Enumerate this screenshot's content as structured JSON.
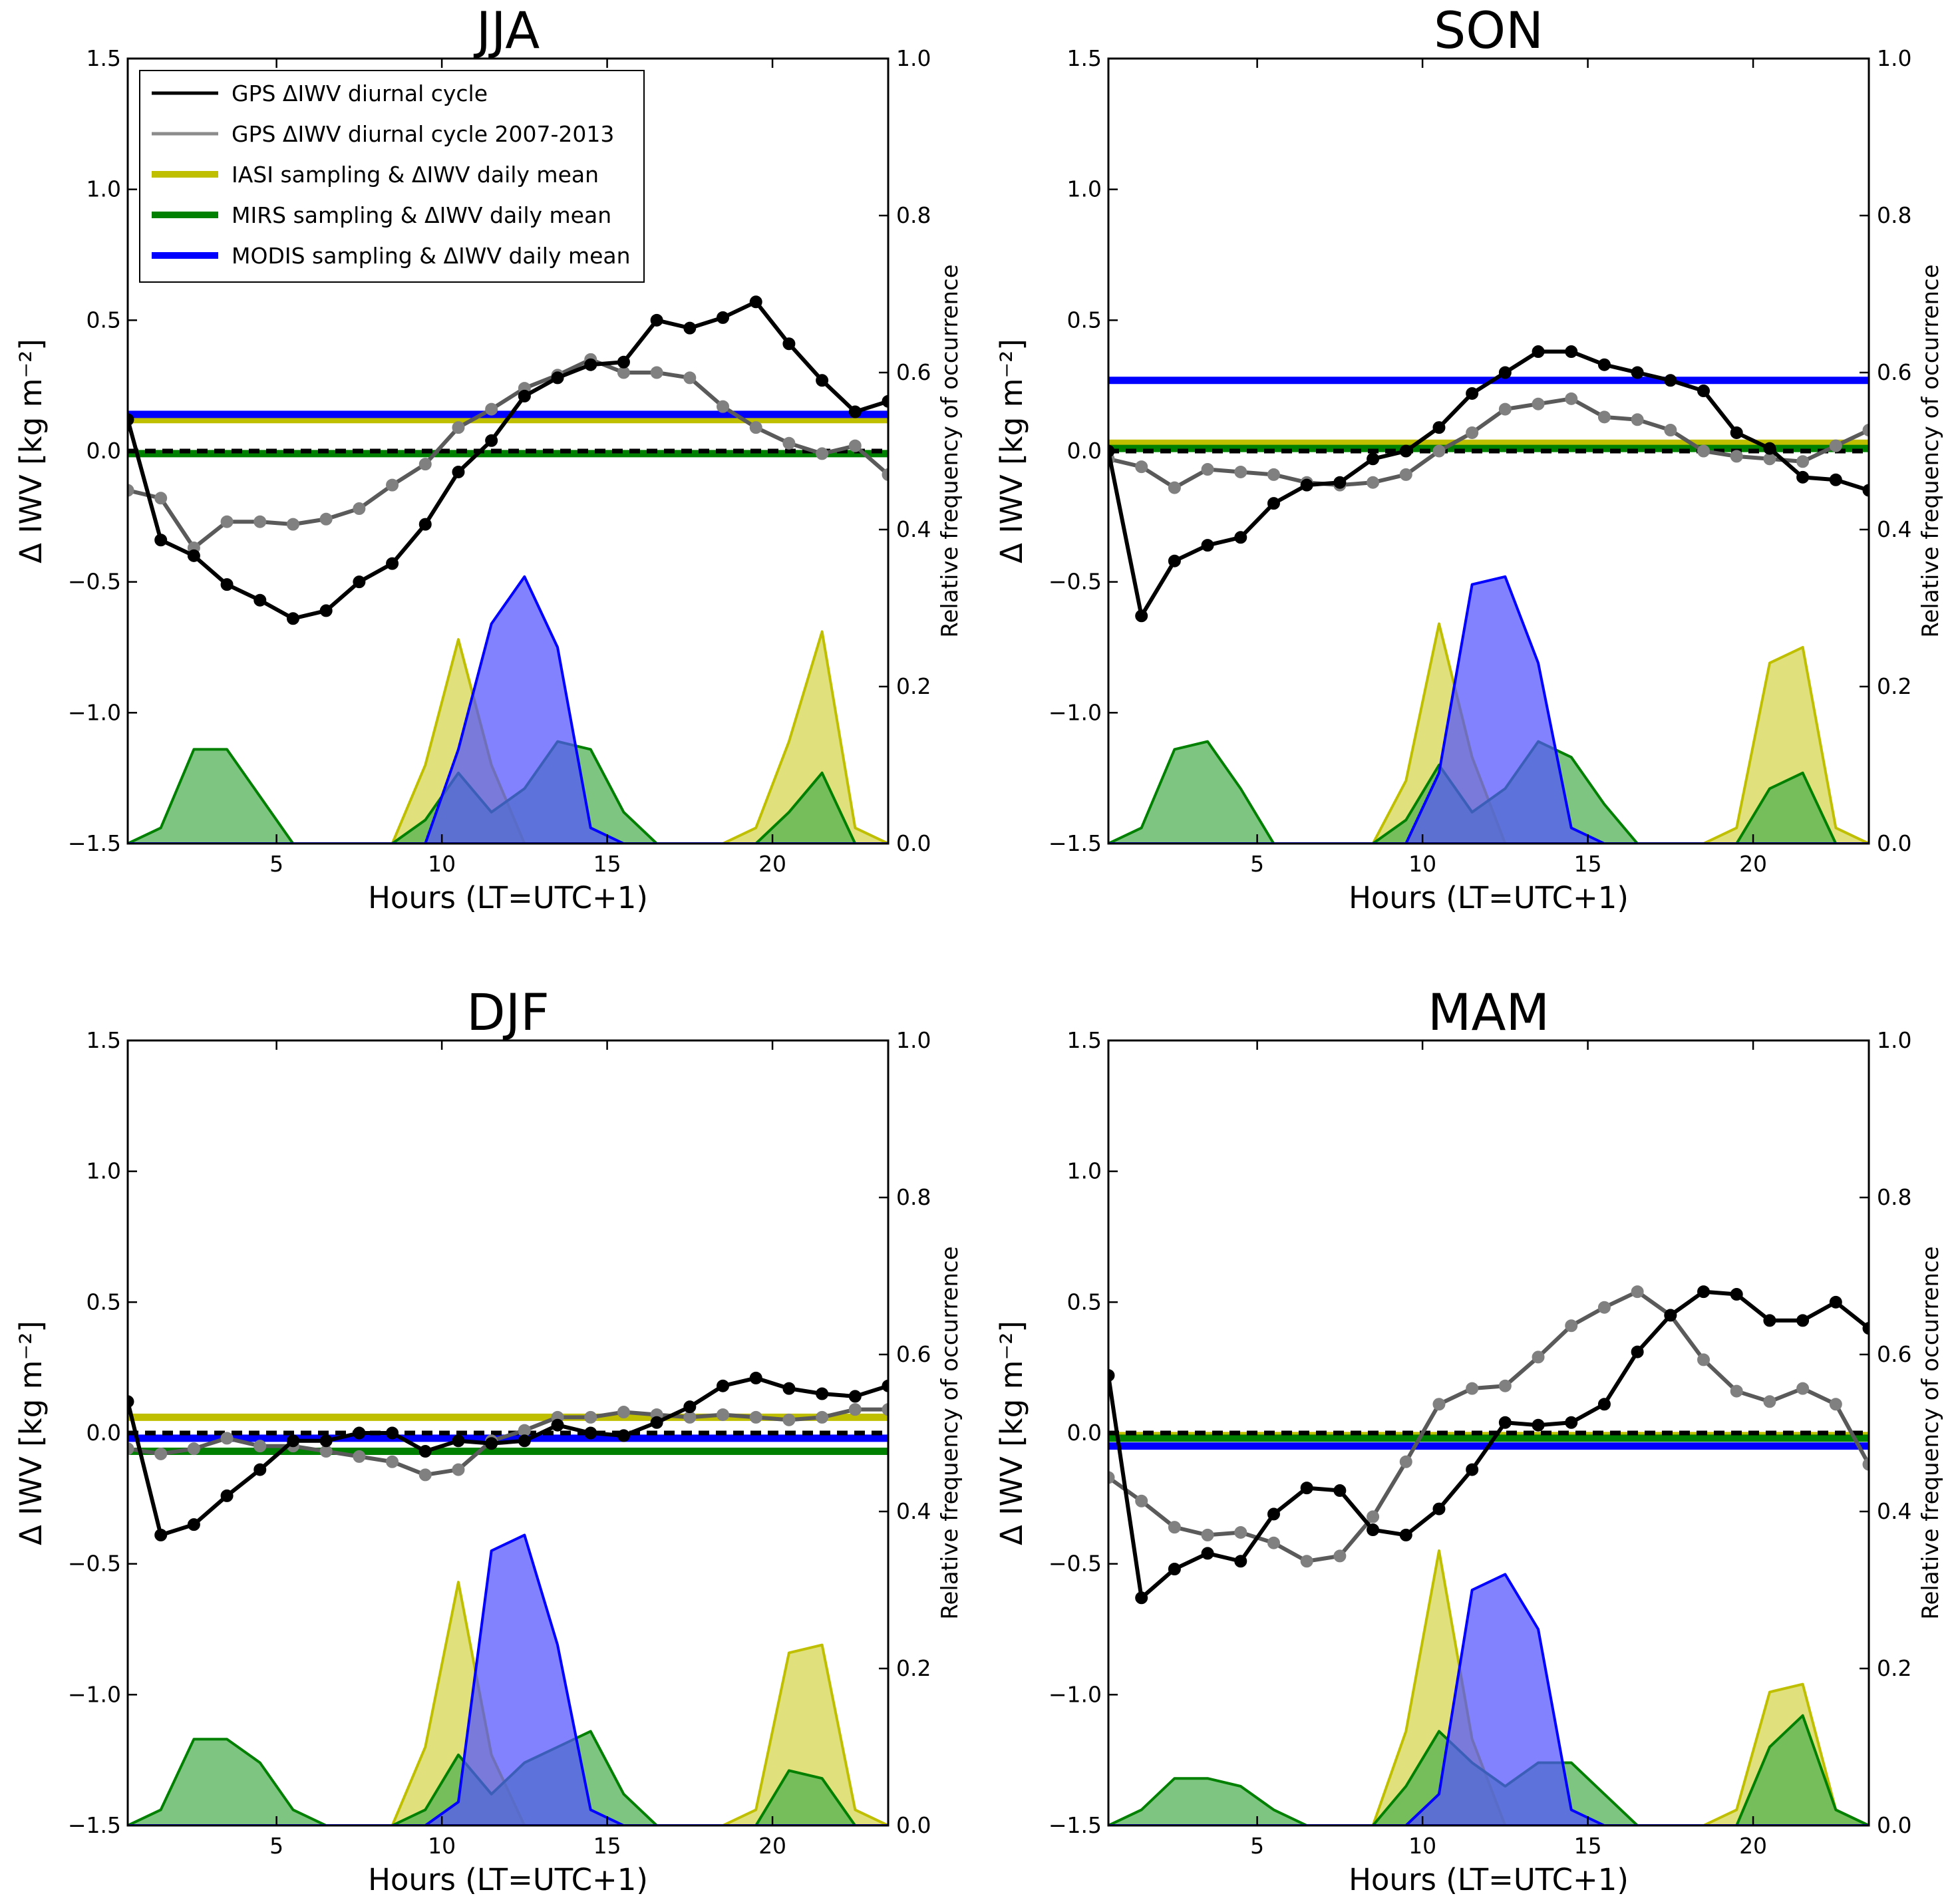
{
  "chart_data": {
    "type": "line",
    "legend": {
      "position": "top-left of first panel",
      "entries": [
        {
          "label": "GPS ΔIWV diurnal cycle",
          "color": "#000000"
        },
        {
          "label": "GPS ΔIWV diurnal cycle 2007-2013",
          "color": "#8c8c8c"
        },
        {
          "label": "IASI sampling & ΔIWV daily mean",
          "color": "#bfbf00"
        },
        {
          "label": "MIRS sampling & ΔIWV daily mean",
          "color": "#008000"
        },
        {
          "label": "MODIS sampling & ΔIWV daily mean",
          "color": "#0000ff"
        }
      ]
    },
    "colors": {
      "gps": "#000000",
      "gps_clim": "#5a5a5a",
      "gps_clim_marker": "#808080",
      "iasi": "#bfbf00",
      "iasi_fill": "#d4d44a",
      "mirs": "#008000",
      "mirs_fill": "#4caf50",
      "modis": "#0000ff",
      "modis_fill": "#5252ff"
    },
    "hours": [
      0.5,
      1.5,
      2.5,
      3.5,
      4.5,
      5.5,
      6.5,
      7.5,
      8.5,
      9.5,
      10.5,
      11.5,
      12.5,
      13.5,
      14.5,
      15.5,
      16.5,
      17.5,
      18.5,
      19.5,
      20.5,
      21.5,
      22.5,
      23.5
    ],
    "panels": [
      {
        "title": "JJA",
        "xlabel": "Hours (LT=UTC+1)",
        "ylabel": "Δ IWV [kg m⁻²]",
        "y2label": "Relative frequency of occurrence",
        "xlim": [
          0.5,
          23.5
        ],
        "ylim": [
          -1.5,
          1.5
        ],
        "y2lim": [
          0.0,
          1.0
        ],
        "xticks": [
          "5",
          "10",
          "15",
          "20"
        ],
        "yticks": [
          "−1.5",
          "−1.0",
          "−0.5",
          "0.0",
          "0.5",
          "1.0",
          "1.5"
        ],
        "y2ticks": [
          "0.0",
          "0.2",
          "0.4",
          "0.6",
          "0.8",
          "1.0"
        ],
        "gps": [
          0.12,
          -0.34,
          -0.4,
          -0.51,
          -0.57,
          -0.64,
          -0.61,
          -0.5,
          -0.43,
          -0.28,
          -0.08,
          0.04,
          0.21,
          0.28,
          0.33,
          0.34,
          0.5,
          0.47,
          0.51,
          0.57,
          0.41,
          0.27,
          0.15,
          0.19
        ],
        "gps_clim": [
          -0.15,
          -0.18,
          -0.37,
          -0.27,
          -0.27,
          -0.28,
          -0.26,
          -0.22,
          -0.13,
          -0.05,
          0.09,
          0.16,
          0.24,
          0.29,
          0.35,
          0.3,
          0.3,
          0.28,
          0.17,
          0.09,
          0.03,
          -0.01,
          0.02,
          -0.09
        ],
        "means": {
          "iasi": 0.12,
          "mirs": -0.01,
          "modis": 0.14
        },
        "freq_iasi": [
          0,
          0,
          0,
          0,
          0,
          0,
          0,
          0,
          0,
          0.1,
          0.26,
          0.1,
          0,
          0,
          0,
          0,
          0,
          0,
          0,
          0.02,
          0.13,
          0.27,
          0.02,
          0
        ],
        "freq_mirs": [
          0,
          0.02,
          0.12,
          0.12,
          0.06,
          0,
          0,
          0,
          0,
          0.03,
          0.09,
          0.04,
          0.07,
          0.13,
          0.12,
          0.04,
          0,
          0,
          0,
          0,
          0.04,
          0.09,
          0,
          0
        ],
        "freq_modis": [
          0,
          0,
          0,
          0,
          0,
          0,
          0,
          0,
          0,
          0,
          0.12,
          0.28,
          0.34,
          0.25,
          0.02,
          0,
          0,
          0,
          0,
          0,
          0,
          0,
          0,
          0
        ]
      },
      {
        "title": "SON",
        "xlabel": "Hours (LT=UTC+1)",
        "ylabel": "Δ IWV [kg m⁻²]",
        "y2label": "Relative frequency of occurrence",
        "xlim": [
          0.5,
          23.5
        ],
        "ylim": [
          -1.5,
          1.5
        ],
        "y2lim": [
          0.0,
          1.0
        ],
        "xticks": [
          "5",
          "10",
          "15",
          "20"
        ],
        "yticks": [
          "−1.5",
          "−1.0",
          "−0.5",
          "0.0",
          "0.5",
          "1.0",
          "1.5"
        ],
        "y2ticks": [
          "0.0",
          "0.2",
          "0.4",
          "0.6",
          "0.8",
          "1.0"
        ],
        "gps": [
          0.0,
          -0.63,
          -0.42,
          -0.36,
          -0.33,
          -0.2,
          -0.13,
          -0.12,
          -0.03,
          0.0,
          0.09,
          0.22,
          0.3,
          0.38,
          0.38,
          0.33,
          0.3,
          0.27,
          0.23,
          0.07,
          0.01,
          -0.1,
          -0.11,
          -0.15
        ],
        "gps_clim": [
          -0.03,
          -0.06,
          -0.14,
          -0.07,
          -0.08,
          -0.09,
          -0.12,
          -0.13,
          -0.12,
          -0.09,
          0.0,
          0.07,
          0.16,
          0.18,
          0.2,
          0.13,
          0.12,
          0.08,
          0.0,
          -0.02,
          -0.03,
          -0.04,
          0.02,
          0.08
        ],
        "means": {
          "iasi": 0.03,
          "mirs": 0.01,
          "modis": 0.27
        },
        "freq_iasi": [
          0,
          0,
          0,
          0,
          0,
          0,
          0,
          0,
          0,
          0.08,
          0.28,
          0.11,
          0,
          0,
          0,
          0,
          0,
          0,
          0,
          0.02,
          0.23,
          0.25,
          0.02,
          0
        ],
        "freq_mirs": [
          0,
          0.02,
          0.12,
          0.13,
          0.07,
          0,
          0,
          0,
          0,
          0.03,
          0.1,
          0.04,
          0.07,
          0.13,
          0.11,
          0.05,
          0,
          0,
          0,
          0,
          0.07,
          0.09,
          0,
          0
        ],
        "freq_modis": [
          0,
          0,
          0,
          0,
          0,
          0,
          0,
          0,
          0,
          0,
          0.09,
          0.33,
          0.34,
          0.23,
          0.02,
          0,
          0,
          0,
          0,
          0,
          0,
          0,
          0,
          0
        ]
      },
      {
        "title": "DJF",
        "xlabel": "Hours (LT=UTC+1)",
        "ylabel": "Δ IWV [kg m⁻²]",
        "y2label": "Relative frequency of occurrence",
        "xlim": [
          0.5,
          23.5
        ],
        "ylim": [
          -1.5,
          1.5
        ],
        "y2lim": [
          0.0,
          1.0
        ],
        "xticks": [
          "5",
          "10",
          "15",
          "20"
        ],
        "yticks": [
          "−1.5",
          "−1.0",
          "−0.5",
          "0.0",
          "0.5",
          "1.0",
          "1.5"
        ],
        "y2ticks": [
          "0.0",
          "0.2",
          "0.4",
          "0.6",
          "0.8",
          "1.0"
        ],
        "gps": [
          0.12,
          -0.39,
          -0.35,
          -0.24,
          -0.14,
          -0.03,
          -0.03,
          0.0,
          0.0,
          -0.07,
          -0.03,
          -0.04,
          -0.03,
          0.03,
          0.0,
          -0.01,
          0.04,
          0.1,
          0.18,
          0.21,
          0.17,
          0.15,
          0.14,
          0.18
        ],
        "gps_clim": [
          -0.06,
          -0.08,
          -0.06,
          -0.02,
          -0.05,
          -0.05,
          -0.07,
          -0.09,
          -0.11,
          -0.16,
          -0.14,
          -0.03,
          0.01,
          0.06,
          0.06,
          0.08,
          0.07,
          0.06,
          0.07,
          0.06,
          0.05,
          0.06,
          0.09,
          0.09
        ],
        "means": {
          "iasi": 0.06,
          "mirs": -0.07,
          "modis": -0.02
        },
        "freq_iasi": [
          0,
          0,
          0,
          0,
          0,
          0,
          0,
          0,
          0,
          0.1,
          0.31,
          0.09,
          0,
          0,
          0,
          0,
          0,
          0,
          0,
          0.02,
          0.22,
          0.23,
          0.02,
          0
        ],
        "freq_mirs": [
          0,
          0.02,
          0.11,
          0.11,
          0.08,
          0.02,
          0,
          0,
          0,
          0.02,
          0.09,
          0.04,
          0.08,
          0.1,
          0.12,
          0.04,
          0,
          0,
          0,
          0,
          0.07,
          0.06,
          0,
          0
        ],
        "freq_modis": [
          0,
          0,
          0,
          0,
          0,
          0,
          0,
          0,
          0,
          0,
          0.03,
          0.35,
          0.37,
          0.23,
          0.02,
          0,
          0,
          0,
          0,
          0,
          0,
          0,
          0,
          0
        ]
      },
      {
        "title": "MAM",
        "xlabel": "Hours (LT=UTC+1)",
        "ylabel": "Δ IWV [kg m⁻²]",
        "y2label": "Relative frequency of occurrence",
        "xlim": [
          0.5,
          23.5
        ],
        "ylim": [
          -1.5,
          1.5
        ],
        "y2lim": [
          0.0,
          1.0
        ],
        "xticks": [
          "5",
          "10",
          "15",
          "20"
        ],
        "yticks": [
          "−1.5",
          "−1.0",
          "−0.5",
          "0.0",
          "0.5",
          "1.0",
          "1.5"
        ],
        "y2ticks": [
          "0.0",
          "0.2",
          "0.4",
          "0.6",
          "0.8",
          "1.0"
        ],
        "gps": [
          0.22,
          -0.63,
          -0.52,
          -0.46,
          -0.49,
          -0.31,
          -0.21,
          -0.22,
          -0.37,
          -0.39,
          -0.29,
          -0.14,
          0.04,
          0.03,
          0.04,
          0.11,
          0.31,
          0.45,
          0.54,
          0.53,
          0.43,
          0.43,
          0.5,
          0.4
        ],
        "gps_clim": [
          -0.17,
          -0.26,
          -0.36,
          -0.39,
          -0.38,
          -0.42,
          -0.49,
          -0.47,
          -0.32,
          -0.11,
          0.11,
          0.17,
          0.18,
          0.29,
          0.41,
          0.48,
          0.54,
          0.45,
          0.28,
          0.16,
          0.12,
          0.17,
          0.11,
          -0.12
        ],
        "means": {
          "iasi": -0.01,
          "mirs": -0.02,
          "modis": -0.05
        },
        "freq_iasi": [
          0,
          0,
          0,
          0,
          0,
          0,
          0,
          0,
          0,
          0.12,
          0.35,
          0.11,
          0,
          0,
          0,
          0,
          0,
          0,
          0,
          0.02,
          0.17,
          0.18,
          0.02,
          0
        ],
        "freq_mirs": [
          0,
          0.02,
          0.06,
          0.06,
          0.05,
          0.02,
          0,
          0,
          0,
          0.05,
          0.12,
          0.08,
          0.05,
          0.08,
          0.08,
          0.04,
          0,
          0,
          0,
          0,
          0.1,
          0.14,
          0.02,
          0
        ],
        "freq_modis": [
          0,
          0,
          0,
          0,
          0,
          0,
          0,
          0,
          0,
          0,
          0.04,
          0.3,
          0.32,
          0.25,
          0.02,
          0,
          0,
          0,
          0,
          0,
          0,
          0,
          0,
          0
        ]
      }
    ]
  }
}
